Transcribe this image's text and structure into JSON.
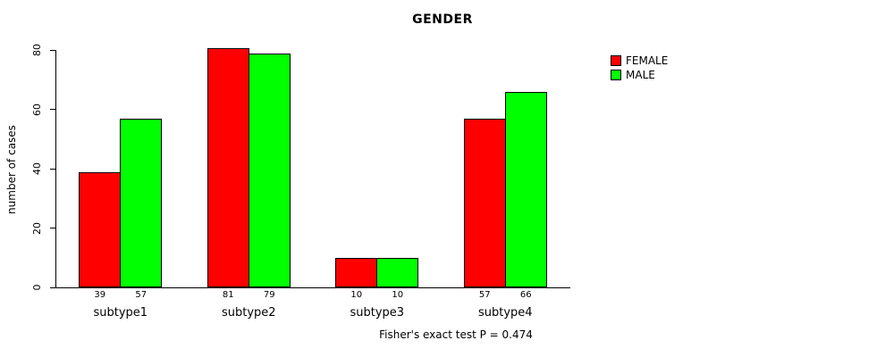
{
  "chart_data": {
    "type": "bar",
    "title": "GENDER",
    "ylabel": "number of cases",
    "categories": [
      "subtype1",
      "subtype2",
      "subtype3",
      "subtype4"
    ],
    "series": [
      {
        "name": "FEMALE",
        "color": "#ff0000",
        "values": [
          39,
          81,
          10,
          57
        ]
      },
      {
        "name": "MALE",
        "color": "#00ff00",
        "values": [
          57,
          79,
          10,
          66
        ]
      }
    ],
    "ylim": [
      0,
      80
    ],
    "yticks": [
      0,
      20,
      40,
      60,
      80
    ],
    "bar_value_labels": true,
    "grid": false,
    "legend_position": "topright",
    "annotation": "Fisher's exact test P = 0.474"
  }
}
